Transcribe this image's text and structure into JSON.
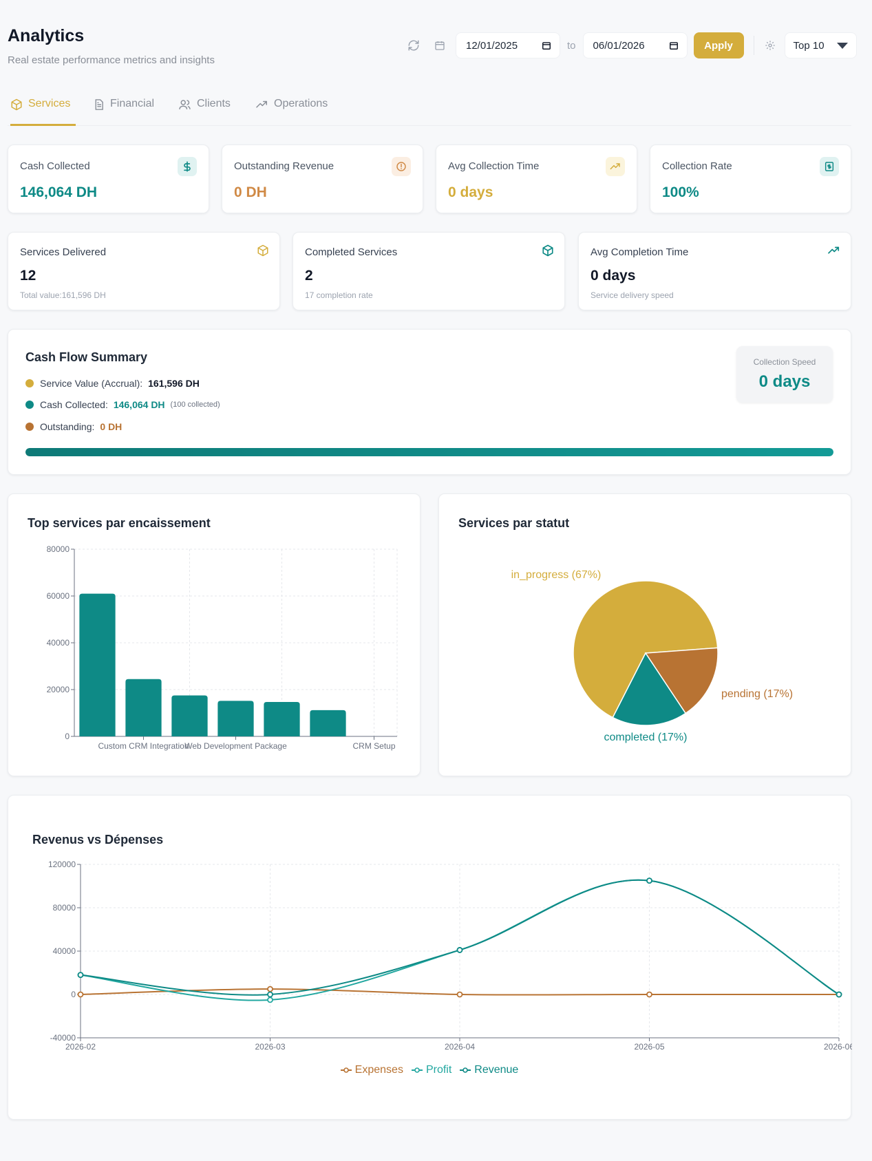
{
  "header": {
    "title": "Analytics",
    "subtitle": "Real estate performance metrics and insights"
  },
  "toolbar": {
    "start_date": "12/01/2025",
    "to_label": "to",
    "end_date": "06/01/2026",
    "apply_label": "Apply",
    "top_selected": "Top 10"
  },
  "tabs": [
    {
      "label": "Services",
      "icon": "box-icon",
      "active": true
    },
    {
      "label": "Financial",
      "icon": "document-icon",
      "active": false
    },
    {
      "label": "Clients",
      "icon": "users-icon",
      "active": false
    },
    {
      "label": "Operations",
      "icon": "trend-icon",
      "active": false
    }
  ],
  "kpis": [
    {
      "label": "Cash Collected",
      "value": "146,064 DH",
      "icon": "dollar-icon",
      "color": "#0e8a86"
    },
    {
      "label": "Outstanding Revenue",
      "value": "0 DH",
      "icon": "alert-circle-icon",
      "color": "#d08a46"
    },
    {
      "label": "Avg Collection Time",
      "value": "0 days",
      "icon": "trend-up-icon",
      "color": "#d4ad3c"
    },
    {
      "label": "Collection Rate",
      "value": "100%",
      "icon": "receipt-icon",
      "color": "#0e8a86"
    }
  ],
  "service_cards": [
    {
      "label": "Services Delivered",
      "value": "12",
      "sub": "Total value:161,596 DH",
      "icon": "box-icon"
    },
    {
      "label": "Completed Services",
      "value": "2",
      "sub": "17 completion rate",
      "icon": "box-check-icon"
    },
    {
      "label": "Avg Completion Time",
      "value": "0 days",
      "sub": "Service delivery speed",
      "icon": "trend-up-icon"
    }
  ],
  "cash_flow": {
    "title": "Cash Flow Summary",
    "rows": [
      {
        "label": "Service Value (Accrual):",
        "value": "161,596 DH",
        "note": "",
        "color": "#d4ad3c"
      },
      {
        "label": "Cash Collected:",
        "value": "146,064 DH",
        "note": "(100 collected)",
        "color": "#0e8a86"
      },
      {
        "label": "Outstanding:",
        "value": "0 DH",
        "note": "",
        "color": "#b87333"
      }
    ],
    "speed_label": "Collection Speed",
    "speed_value": "0 days",
    "progress_percent": 100
  },
  "colors": {
    "teal": "#0e8a86",
    "gold": "#d4ad3c",
    "rust": "#b87333",
    "profit": "#22a7a0"
  },
  "chart_data": [
    {
      "type": "bar",
      "title": "Top services par encaissement",
      "categories": [
        "Custom CRM Integration",
        "",
        "",
        "Web Development Package",
        "",
        "",
        "CRM Setup"
      ],
      "tick_labels": [
        "Custom CRM Integration",
        "Web Development Package",
        "CRM Setup"
      ],
      "values": [
        61000,
        24500,
        17500,
        15200,
        14700,
        11200,
        0
      ],
      "ylim": [
        0,
        80000
      ],
      "yticks": [
        "80000",
        "60000",
        "40000",
        "20000",
        "0"
      ],
      "grid": true,
      "color": "#0e8a86"
    },
    {
      "type": "pie",
      "title": "Services par statut",
      "slices": [
        {
          "label": "in_progress (67%)",
          "value": 67,
          "color": "#d4ad3c"
        },
        {
          "label": "pending (17%)",
          "value": 17,
          "color": "#b87333"
        },
        {
          "label": "completed (17%)",
          "value": 17,
          "color": "#0e8a86"
        }
      ]
    },
    {
      "type": "line",
      "title": "Revenus vs Dépenses",
      "x": [
        "2026-02",
        "2026-03",
        "2026-04",
        "2026-05",
        "2026-06"
      ],
      "ylim": [
        -40000,
        120000
      ],
      "yticks": [
        "120000",
        "80000",
        "40000",
        "0",
        "-40000"
      ],
      "grid": true,
      "legend_position": "bottom",
      "series": [
        {
          "name": "Expenses",
          "values": [
            0,
            5000,
            0,
            0,
            0
          ],
          "color": "#b87333"
        },
        {
          "name": "Profit",
          "values": [
            18000,
            -5000,
            41000,
            105000,
            0
          ],
          "color": "#22a7a0"
        },
        {
          "name": "Revenue",
          "values": [
            18000,
            0,
            41000,
            105000,
            0
          ],
          "color": "#0e8a86"
        }
      ]
    }
  ]
}
